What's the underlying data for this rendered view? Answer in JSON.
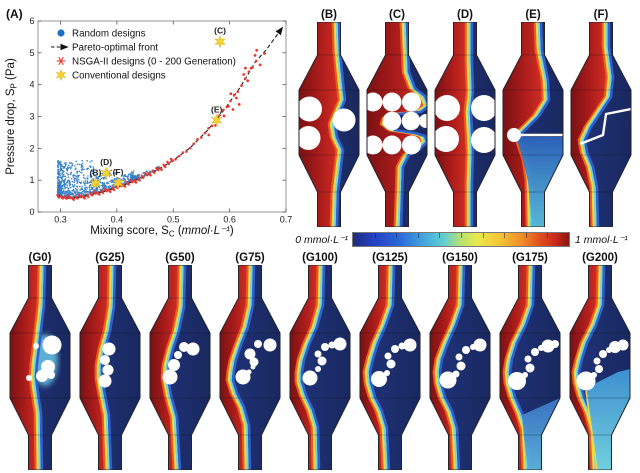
{
  "chart_data": {
    "type": "scatter",
    "title": "(A)",
    "xlabel_parts": [
      {
        "t": "Mixing score, S"
      },
      {
        "t": "C",
        "sub": true
      },
      {
        "t": " ("
      },
      {
        "t": "mmol·L⁻¹",
        "italic": true
      },
      {
        "t": ")"
      }
    ],
    "ylabel_parts": [
      {
        "t": "Pressure drop, S"
      },
      {
        "t": "P",
        "sub": true
      },
      {
        "t": " (Pa)"
      }
    ],
    "xlim": [
      0.26,
      0.7
    ],
    "ylim": [
      0,
      6
    ],
    "x_ticks": [
      0.3,
      0.4,
      0.5,
      0.6,
      0.7
    ],
    "y_ticks": [
      0,
      1,
      2,
      3,
      4,
      5,
      6
    ],
    "grid": false,
    "legend_position": "top-left",
    "series": [
      {
        "name": "Random designs",
        "type": "scatter-cloud",
        "marker": "dot",
        "color": "#1e72c2",
        "count": 1100,
        "seed": 11,
        "x_min": 0.295,
        "x_max": 0.475,
        "y_max": 1.62
      },
      {
        "name": "Pareto-optimal front",
        "type": "line-dashed-arrow",
        "color": "#1a1a1a",
        "points": [
          [
            0.297,
            0.52
          ],
          [
            0.305,
            0.44
          ],
          [
            0.315,
            0.425
          ],
          [
            0.33,
            0.45
          ],
          [
            0.35,
            0.52
          ],
          [
            0.38,
            0.655
          ],
          [
            0.41,
            0.825
          ],
          [
            0.44,
            1.04
          ],
          [
            0.47,
            1.3
          ],
          [
            0.5,
            1.62
          ],
          [
            0.53,
            2.02
          ],
          [
            0.56,
            2.55
          ],
          [
            0.59,
            3.2
          ],
          [
            0.62,
            3.95
          ],
          [
            0.645,
            4.7
          ],
          [
            0.665,
            5.1
          ],
          [
            0.693,
            5.78
          ]
        ]
      },
      {
        "name": "NSGA-II designs (0 - 200 Generation)",
        "type": "scatter-along-front",
        "marker": "asterisk",
        "color": "#e8392f",
        "step": 0.0065,
        "range": [
          0.296,
          0.652
        ],
        "extra_points": [
          [
            0.598,
            3.32
          ],
          [
            0.606,
            3.22
          ],
          [
            0.612,
            3.58
          ],
          [
            0.617,
            3.38
          ],
          [
            0.625,
            4.32
          ],
          [
            0.632,
            4.12
          ],
          [
            0.638,
            4.52
          ],
          [
            0.645,
            4.92
          ],
          [
            0.654,
            4.62
          ],
          [
            0.662,
            4.98
          ],
          [
            0.59,
            3.02
          ],
          [
            0.602,
            3.72
          ],
          [
            0.628,
            4.52
          ],
          [
            0.648,
            5.08
          ],
          [
            0.575,
            2.72
          ],
          [
            0.563,
            2.42
          ]
        ]
      },
      {
        "name": "Conventional designs",
        "type": "scatter",
        "marker": "star",
        "color": "#f3d32e",
        "points": [
          {
            "label": "(B)",
            "x": 0.362,
            "y": 0.9
          },
          {
            "label": "(C)",
            "x": 0.583,
            "y": 5.35
          },
          {
            "label": "(D)",
            "x": 0.381,
            "y": 1.22
          },
          {
            "label": "(E)",
            "x": 0.577,
            "y": 2.88
          },
          {
            "label": "(F)",
            "x": 0.402,
            "y": 0.91
          }
        ]
      }
    ]
  },
  "mixer_palette": {
    "dark_red": "#7a1113",
    "red": "#c42720",
    "red_edge": "#ce3024",
    "orange": "#ec5b22",
    "yellow": "#f2dd3e",
    "cyan": "#74d6e6",
    "blue": "#3060c8",
    "navy": "#20347c",
    "navy_edge": "#19285f",
    "mixed_strong_top": "#3f92d2",
    "mixed_strong_bottom": "#74d4e2",
    "mixed_light_top": "#3a74c4",
    "mixed_light_bottom": "#5cb2da",
    "mixed_baffle_top": "#2d62ba",
    "mixed_baffle_bottom": "#58bcda"
  },
  "panels_top": [
    {
      "id": "B",
      "label": "(B)",
      "iface": [
        [
          36,
          0
        ],
        [
          37,
          30
        ],
        [
          40,
          60
        ],
        [
          42,
          78
        ],
        [
          36,
          92
        ],
        [
          32,
          102
        ],
        [
          34,
          115
        ],
        [
          40,
          128
        ],
        [
          38,
          145
        ],
        [
          35,
          170
        ],
        [
          34,
          205
        ]
      ],
      "pillars": [
        [
          12.5,
          87,
          12.5
        ],
        [
          11.5,
          116,
          12
        ],
        [
          47,
          98,
          11.5
        ]
      ]
    },
    {
      "id": "C",
      "label": "(C)",
      "iface": [
        [
          36,
          0
        ],
        [
          38,
          50
        ],
        [
          44,
          66
        ],
        [
          54,
          74
        ],
        [
          58,
          84
        ],
        [
          50,
          90
        ],
        [
          28,
          92
        ],
        [
          18,
          96
        ],
        [
          16,
          102
        ],
        [
          24,
          108
        ],
        [
          44,
          111
        ],
        [
          54,
          114
        ],
        [
          56,
          120
        ],
        [
          48,
          128
        ],
        [
          38,
          133
        ],
        [
          32,
          145
        ],
        [
          30,
          205
        ]
      ],
      "pillars": [
        [
          8,
          80,
          9.5
        ],
        [
          27,
          80,
          9.5
        ],
        [
          46.5,
          80,
          9.5
        ],
        [
          27,
          99,
          9.3
        ],
        [
          46,
          99,
          9.3
        ],
        [
          61,
          99,
          7
        ],
        [
          8,
          123,
          9.5
        ],
        [
          27,
          123,
          9.5
        ],
        [
          46.5,
          123,
          9.5
        ]
      ]
    },
    {
      "id": "D",
      "label": "(D)",
      "iface": [
        [
          33,
          0
        ],
        [
          33,
          40
        ],
        [
          34,
          70
        ],
        [
          32,
          90
        ],
        [
          33,
          110
        ],
        [
          34,
          130
        ],
        [
          33,
          160
        ],
        [
          33,
          205
        ]
      ],
      "pillars": [
        [
          14,
          86,
          13
        ],
        [
          51,
          86,
          13
        ],
        [
          13,
          117,
          13
        ],
        [
          51,
          118,
          13
        ]
      ]
    },
    {
      "id": "E",
      "label": "(E)",
      "iface": [
        [
          34,
          0
        ],
        [
          35,
          28
        ],
        [
          41,
          58
        ],
        [
          42,
          78
        ],
        [
          32,
          94
        ],
        [
          22,
          104
        ],
        [
          14,
          112
        ],
        [
          16,
          120
        ],
        [
          22,
          138
        ],
        [
          25,
          158
        ],
        [
          26,
          205
        ]
      ],
      "pillars": [
        [
          13,
          113,
          7
        ]
      ],
      "baffle": [
        [
          13,
          113
        ],
        [
          62,
          113
        ]
      ],
      "mixed": "below-baffle"
    },
    {
      "id": "F",
      "label": "(F)",
      "iface": [
        [
          34,
          0
        ],
        [
          34,
          25
        ],
        [
          38,
          55
        ],
        [
          36,
          75
        ],
        [
          26,
          90
        ],
        [
          16,
          105
        ],
        [
          10,
          118
        ],
        [
          12,
          130
        ],
        [
          18,
          145
        ],
        [
          22,
          165
        ],
        [
          23,
          205
        ]
      ],
      "pillars": [],
      "baffle": [
        [
          11,
          122
        ],
        [
          34,
          113
        ],
        [
          37,
          92
        ],
        [
          62,
          87
        ]
      ]
    }
  ],
  "panels_bottom": [
    {
      "id": "G0",
      "label": "(G0)",
      "iface": [
        [
          31,
          0
        ],
        [
          30,
          40
        ],
        [
          27,
          65
        ],
        [
          25,
          82
        ],
        [
          23,
          98
        ],
        [
          22,
          112
        ],
        [
          24,
          128
        ],
        [
          27,
          148
        ],
        [
          28,
          205
        ]
      ],
      "pillars": [
        [
          44,
          80,
          9.5
        ],
        [
          28,
          81,
          3
        ],
        [
          40,
          102,
          7
        ],
        [
          34,
          111,
          6
        ],
        [
          43,
          110,
          4
        ],
        [
          21,
          113,
          3
        ]
      ],
      "cyan_patch": [
        37,
        95,
        13,
        26
      ]
    },
    {
      "id": "G25",
      "label": "(G25)",
      "iface": [
        [
          31,
          0
        ],
        [
          30,
          42
        ],
        [
          26,
          66
        ],
        [
          21,
          84
        ],
        [
          18,
          100
        ],
        [
          18,
          114
        ],
        [
          21,
          130
        ],
        [
          25,
          150
        ],
        [
          27,
          205
        ]
      ],
      "pillars": [
        [
          31,
          84,
          6.5
        ],
        [
          27,
          95,
          5
        ],
        [
          30,
          105,
          5.5
        ],
        [
          27,
          116,
          6.5
        ]
      ]
    },
    {
      "id": "G50",
      "label": "(G50)",
      "iface": [
        [
          31,
          0
        ],
        [
          30,
          42
        ],
        [
          25,
          66
        ],
        [
          19,
          84
        ],
        [
          15,
          100
        ],
        [
          14,
          113
        ],
        [
          17,
          130
        ],
        [
          23,
          152
        ],
        [
          26,
          205
        ]
      ],
      "pillars": [
        [
          36,
          82,
          5
        ],
        [
          30,
          90,
          4
        ],
        [
          26,
          100,
          6
        ],
        [
          22,
          112,
          7.5
        ],
        [
          45,
          84,
          6.5
        ]
      ]
    },
    {
      "id": "G75",
      "label": "(G75)",
      "iface": [
        [
          30,
          0
        ],
        [
          29,
          40
        ],
        [
          24,
          62
        ],
        [
          17,
          80
        ],
        [
          12,
          95
        ],
        [
          10,
          105
        ],
        [
          9,
          115
        ],
        [
          13,
          128
        ],
        [
          20,
          142
        ],
        [
          25,
          160
        ],
        [
          26,
          205
        ]
      ],
      "pillars": [
        [
          25,
          112,
          7.5
        ],
        [
          31,
          107,
          2.5
        ],
        [
          36,
          97,
          4.5
        ],
        [
          32,
          89,
          5.5
        ],
        [
          40,
          79,
          4
        ],
        [
          52,
          80,
          6.5
        ],
        [
          35,
          102,
          2.5
        ]
      ]
    },
    {
      "id": "G100",
      "label": "(G100)",
      "iface": [
        [
          30,
          0
        ],
        [
          29,
          40
        ],
        [
          23,
          62
        ],
        [
          15,
          80
        ],
        [
          10,
          95
        ],
        [
          8,
          107
        ],
        [
          8,
          117
        ],
        [
          12,
          130
        ],
        [
          19,
          145
        ],
        [
          24,
          162
        ],
        [
          25,
          205
        ]
      ],
      "pillars": [
        [
          22,
          113,
          7.5
        ],
        [
          30,
          104,
          3
        ],
        [
          34,
          96,
          4.5
        ],
        [
          30,
          89,
          3.5
        ],
        [
          37,
          82,
          4
        ],
        [
          44,
          80,
          3.5
        ],
        [
          52,
          79,
          6.5
        ]
      ]
    },
    {
      "id": "G125",
      "label": "(G125)",
      "iface": [
        [
          30,
          0
        ],
        [
          29,
          40
        ],
        [
          22,
          60
        ],
        [
          14,
          78
        ],
        [
          9,
          94
        ],
        [
          6,
          107
        ],
        [
          7,
          118
        ],
        [
          11,
          132
        ],
        [
          18,
          146
        ],
        [
          23,
          163
        ],
        [
          25,
          205
        ]
      ],
      "pillars": [
        [
          21,
          114,
          8
        ],
        [
          29,
          108,
          3
        ],
        [
          33,
          99,
          4.5
        ],
        [
          30,
          91,
          3.5
        ],
        [
          37,
          84,
          4
        ],
        [
          44,
          81,
          3.5
        ],
        [
          52,
          80,
          6.5
        ]
      ]
    },
    {
      "id": "G150",
      "label": "(G150)",
      "iface": [
        [
          30,
          0
        ],
        [
          29,
          40
        ],
        [
          22,
          60
        ],
        [
          14,
          78
        ],
        [
          8,
          94
        ],
        [
          6,
          107
        ],
        [
          7,
          118
        ],
        [
          11,
          132
        ],
        [
          18,
          146
        ],
        [
          23,
          163
        ],
        [
          25,
          205
        ]
      ],
      "pillars": [
        [
          20,
          115,
          8.5
        ],
        [
          28,
          109,
          3.5
        ],
        [
          33,
          101,
          4.5
        ],
        [
          31,
          92,
          3.5
        ],
        [
          38,
          85,
          4
        ],
        [
          45,
          82,
          3
        ],
        [
          52,
          80,
          6.5
        ]
      ]
    },
    {
      "id": "G175",
      "label": "(G175)",
      "iface": [
        [
          30,
          0
        ],
        [
          29,
          40
        ],
        [
          22,
          60
        ],
        [
          13,
          78
        ],
        [
          8,
          94
        ],
        [
          6,
          107
        ],
        [
          7,
          118
        ],
        [
          11,
          132
        ],
        [
          18,
          148
        ],
        [
          23,
          164
        ],
        [
          25,
          205
        ]
      ],
      "pillars": [
        [
          19,
          116,
          9
        ],
        [
          27,
          110,
          3
        ],
        [
          32,
          103,
          4.5
        ],
        [
          30,
          94,
          3.5
        ],
        [
          37,
          87,
          4
        ],
        [
          43,
          83,
          3
        ],
        [
          50,
          81,
          6.5
        ],
        [
          57,
          79,
          4
        ]
      ],
      "mixed": "light"
    },
    {
      "id": "G200",
      "label": "(G200)",
      "iface": [
        [
          30,
          0
        ],
        [
          29,
          40
        ],
        [
          22,
          60
        ],
        [
          13,
          78
        ],
        [
          8,
          94
        ],
        [
          5,
          107
        ],
        [
          6,
          118
        ],
        [
          10,
          132
        ],
        [
          17,
          148
        ],
        [
          22,
          166
        ],
        [
          24,
          205
        ]
      ],
      "pillars": [
        [
          18,
          116,
          9.5
        ],
        [
          26,
          110,
          3
        ],
        [
          31,
          104,
          4
        ],
        [
          29,
          96,
          3.5
        ],
        [
          35,
          89,
          4
        ],
        [
          41,
          85,
          3
        ],
        [
          47,
          82,
          6
        ],
        [
          55,
          80,
          5.5
        ]
      ],
      "mixed": "strong"
    }
  ],
  "colorbar": {
    "min_label": "0 mmol·L⁻¹",
    "max_label": "1 mmol·L⁻¹",
    "stops": [
      [
        0,
        "#1c2b7a"
      ],
      [
        0.1,
        "#2541c8"
      ],
      [
        0.22,
        "#2a6ad8"
      ],
      [
        0.33,
        "#44a8dc"
      ],
      [
        0.42,
        "#62cfd2"
      ],
      [
        0.5,
        "#b8e170"
      ],
      [
        0.58,
        "#eae94c"
      ],
      [
        0.68,
        "#f6c437"
      ],
      [
        0.78,
        "#f18f28"
      ],
      [
        0.86,
        "#e2511f"
      ],
      [
        0.94,
        "#c6281a"
      ],
      [
        1,
        "#8a1510"
      ]
    ],
    "tick_count": 9
  }
}
